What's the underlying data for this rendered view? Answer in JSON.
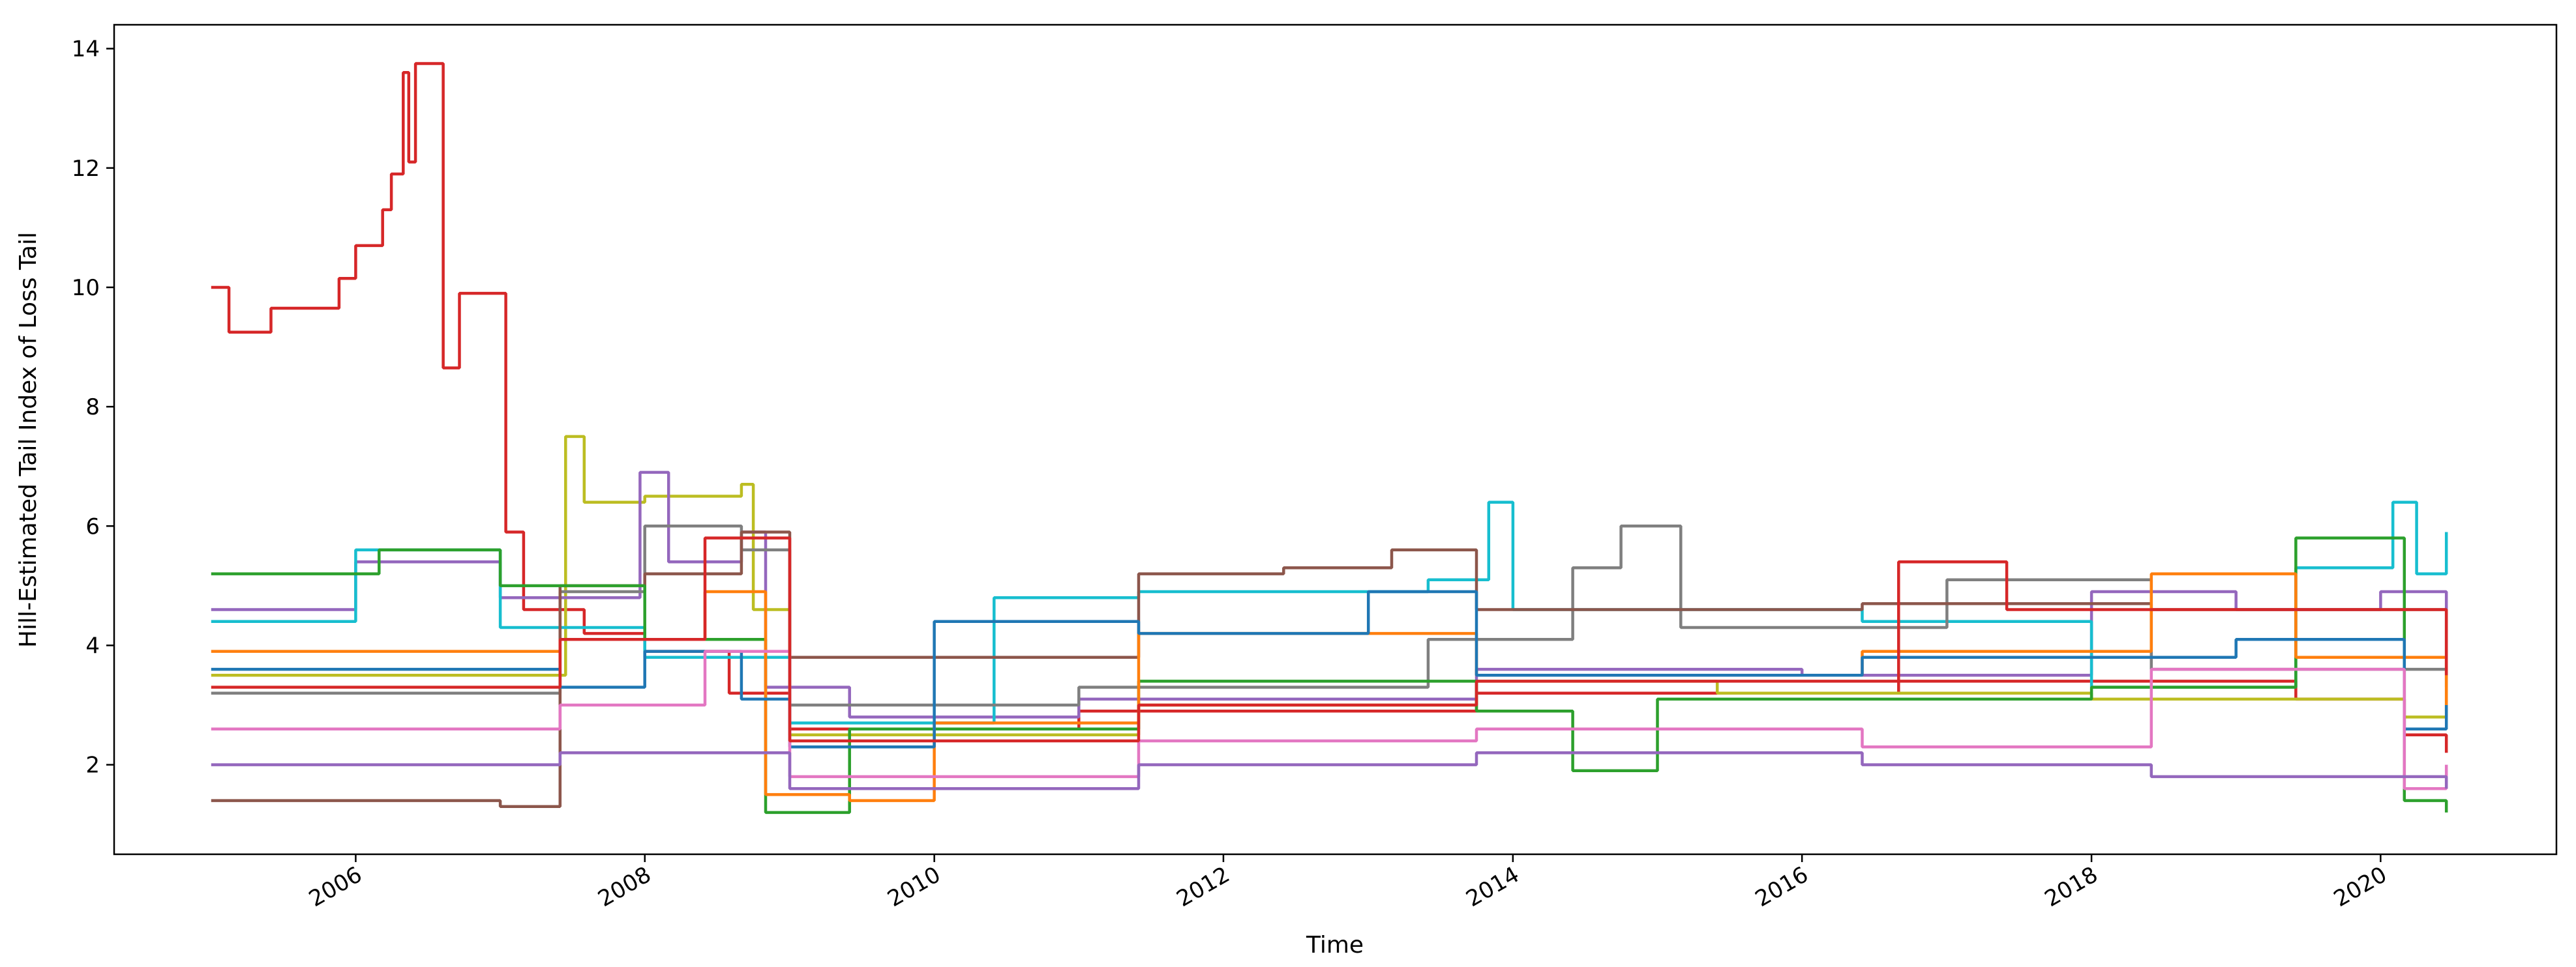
{
  "chart_data": {
    "type": "line",
    "title": "",
    "xlabel": "Time",
    "ylabel": "Hill-Estimated Tail Index of Loss Tail",
    "xlim": [
      "2004-05-01",
      "2021-03-20"
    ],
    "ylim": [
      0.5,
      14.4
    ],
    "x_ticks": [
      "2006",
      "2008",
      "2010",
      "2012",
      "2014",
      "2016",
      "2018",
      "2020"
    ],
    "y_ticks": [
      2,
      4,
      6,
      8,
      10,
      12,
      14
    ],
    "grid": false,
    "legend": "none",
    "palette": [
      "#1f77b4",
      "#ff7f0e",
      "#2ca02c",
      "#d62728",
      "#9467bd",
      "#8c564b",
      "#e377c2",
      "#7f7f7f",
      "#bcbd22",
      "#17becf"
    ],
    "series_note": "Many (roughly 100+) step-like series; individual series are unlabeled. Representative series listed below.",
    "series": [
      {
        "color": "#d62728",
        "points": [
          [
            "2005-01-01",
            10.0
          ],
          [
            "2005-02-15",
            9.25
          ],
          [
            "2005-06-01",
            9.65
          ],
          [
            "2005-11-20",
            10.15
          ],
          [
            "2006-01-01",
            10.7
          ],
          [
            "2006-03-10",
            11.3
          ],
          [
            "2006-04-01",
            11.9
          ],
          [
            "2006-05-01",
            13.6
          ],
          [
            "2006-05-15",
            12.1
          ],
          [
            "2006-06-01",
            13.75
          ],
          [
            "2006-08-10",
            8.65
          ],
          [
            "2006-09-20",
            9.9
          ],
          [
            "2007-01-15",
            5.9
          ],
          [
            "2007-03-01",
            4.6
          ],
          [
            "2007-08-01",
            4.2
          ],
          [
            "2008-01-01",
            3.9
          ],
          [
            "2008-08-01",
            3.2
          ],
          [
            "2009-01-01",
            2.6
          ],
          [
            "2011-01-01",
            2.9
          ],
          [
            "2013-10-01",
            3.2
          ],
          [
            "2016-09-01",
            3.4
          ],
          [
            "2019-06-01",
            3.1
          ],
          [
            "2020-03-01",
            2.5
          ],
          [
            "2020-06-15",
            2.2
          ]
        ]
      },
      {
        "color": "#bcbd22",
        "points": [
          [
            "2005-01-01",
            3.5
          ],
          [
            "2007-06-15",
            7.5
          ],
          [
            "2007-08-01",
            6.4
          ],
          [
            "2008-01-01",
            6.5
          ],
          [
            "2008-09-01",
            6.7
          ],
          [
            "2008-10-01",
            4.6
          ],
          [
            "2009-01-01",
            2.5
          ],
          [
            "2011-06-01",
            3.0
          ],
          [
            "2013-10-01",
            3.4
          ],
          [
            "2015-06-01",
            3.2
          ],
          [
            "2018-01-01",
            3.1
          ],
          [
            "2020-03-01",
            2.8
          ],
          [
            "2020-06-15",
            4.3
          ]
        ]
      },
      {
        "color": "#9467bd",
        "points": [
          [
            "2005-01-01",
            4.6
          ],
          [
            "2006-01-01",
            5.4
          ],
          [
            "2007-01-01",
            4.8
          ],
          [
            "2007-12-20",
            6.9
          ],
          [
            "2008-03-01",
            5.4
          ],
          [
            "2008-09-01",
            5.9
          ],
          [
            "2008-11-01",
            3.3
          ],
          [
            "2009-06-01",
            2.8
          ],
          [
            "2011-01-01",
            3.1
          ],
          [
            "2013-10-01",
            3.6
          ],
          [
            "2016-01-01",
            3.5
          ],
          [
            "2018-01-01",
            4.9
          ],
          [
            "2019-01-01",
            4.6
          ],
          [
            "2020-01-01",
            4.9
          ],
          [
            "2020-06-15",
            4.3
          ]
        ]
      },
      {
        "color": "#17becf",
        "points": [
          [
            "2005-01-01",
            4.4
          ],
          [
            "2006-01-01",
            5.6
          ],
          [
            "2007-01-01",
            4.3
          ],
          [
            "2008-01-01",
            3.8
          ],
          [
            "2009-01-01",
            2.7
          ],
          [
            "2010-06-01",
            4.8
          ],
          [
            "2011-06-01",
            4.9
          ],
          [
            "2013-06-01",
            5.1
          ],
          [
            "2013-11-01",
            6.4
          ],
          [
            "2014-01-01",
            4.6
          ],
          [
            "2016-06-01",
            4.4
          ],
          [
            "2018-01-01",
            3.3
          ],
          [
            "2019-06-01",
            5.3
          ],
          [
            "2020-02-01",
            6.4
          ],
          [
            "2020-04-01",
            5.2
          ],
          [
            "2020-06-15",
            5.9
          ]
        ]
      },
      {
        "color": "#7f7f7f",
        "points": [
          [
            "2005-01-01",
            3.2
          ],
          [
            "2007-06-01",
            4.9
          ],
          [
            "2008-01-01",
            6.0
          ],
          [
            "2008-09-01",
            5.6
          ],
          [
            "2009-01-01",
            3.0
          ],
          [
            "2011-01-01",
            3.3
          ],
          [
            "2013-06-01",
            4.1
          ],
          [
            "2014-06-01",
            5.3
          ],
          [
            "2014-10-01",
            6.0
          ],
          [
            "2015-03-01",
            4.3
          ],
          [
            "2017-01-01",
            5.1
          ],
          [
            "2018-06-01",
            3.6
          ],
          [
            "2020-06-15",
            3.3
          ]
        ]
      },
      {
        "color": "#8c564b",
        "points": [
          [
            "2005-01-01",
            1.4
          ],
          [
            "2007-01-01",
            1.3
          ],
          [
            "2007-06-01",
            5.0
          ],
          [
            "2008-01-01",
            5.2
          ],
          [
            "2008-09-01",
            5.9
          ],
          [
            "2009-01-01",
            3.8
          ],
          [
            "2011-06-01",
            5.2
          ],
          [
            "2012-06-01",
            5.3
          ],
          [
            "2013-03-01",
            5.6
          ],
          [
            "2013-10-01",
            4.6
          ],
          [
            "2016-06-01",
            4.7
          ],
          [
            "2018-06-01",
            4.6
          ],
          [
            "2020-06-15",
            3.6
          ]
        ]
      },
      {
        "color": "#2ca02c",
        "points": [
          [
            "2005-01-01",
            5.2
          ],
          [
            "2006-03-01",
            5.6
          ],
          [
            "2007-01-01",
            5.0
          ],
          [
            "2008-01-01",
            4.1
          ],
          [
            "2008-11-01",
            1.2
          ],
          [
            "2009-06-01",
            2.6
          ],
          [
            "2011-06-01",
            3.4
          ],
          [
            "2013-10-01",
            2.9
          ],
          [
            "2014-06-01",
            1.9
          ],
          [
            "2015-01-01",
            3.1
          ],
          [
            "2018-01-01",
            3.3
          ],
          [
            "2019-06-01",
            5.8
          ],
          [
            "2020-03-01",
            1.4
          ],
          [
            "2020-06-15",
            1.2
          ]
        ]
      },
      {
        "color": "#ff7f0e",
        "points": [
          [
            "2005-01-01",
            3.9
          ],
          [
            "2007-06-01",
            4.1
          ],
          [
            "2008-06-01",
            4.9
          ],
          [
            "2008-11-01",
            1.5
          ],
          [
            "2009-06-01",
            1.4
          ],
          [
            "2010-01-01",
            2.7
          ],
          [
            "2011-06-01",
            4.2
          ],
          [
            "2013-10-01",
            3.5
          ],
          [
            "2016-06-01",
            3.9
          ],
          [
            "2018-06-01",
            5.2
          ],
          [
            "2019-06-01",
            3.8
          ],
          [
            "2020-06-15",
            2.9
          ]
        ]
      },
      {
        "color": "#1f77b4",
        "points": [
          [
            "2005-01-01",
            3.6
          ],
          [
            "2007-06-01",
            3.3
          ],
          [
            "2008-01-01",
            3.9
          ],
          [
            "2008-09-01",
            3.1
          ],
          [
            "2009-01-01",
            2.3
          ],
          [
            "2010-01-01",
            4.4
          ],
          [
            "2011-06-01",
            4.2
          ],
          [
            "2013-01-01",
            4.9
          ],
          [
            "2013-10-01",
            3.5
          ],
          [
            "2016-06-01",
            3.8
          ],
          [
            "2019-01-01",
            4.1
          ],
          [
            "2020-03-01",
            2.6
          ],
          [
            "2020-06-15",
            3.0
          ]
        ]
      },
      {
        "color": "#e377c2",
        "points": [
          [
            "2005-01-01",
            2.6
          ],
          [
            "2007-06-01",
            3.0
          ],
          [
            "2008-06-01",
            3.9
          ],
          [
            "2009-01-01",
            1.8
          ],
          [
            "2011-06-01",
            2.4
          ],
          [
            "2013-10-01",
            2.6
          ],
          [
            "2016-06-01",
            2.3
          ],
          [
            "2018-06-01",
            3.6
          ],
          [
            "2020-03-01",
            1.6
          ],
          [
            "2020-06-15",
            2.0
          ]
        ]
      },
      {
        "color": "#d62728",
        "points": [
          [
            "2005-01-01",
            3.3
          ],
          [
            "2007-06-01",
            4.1
          ],
          [
            "2008-06-01",
            5.8
          ],
          [
            "2009-01-01",
            2.4
          ],
          [
            "2011-06-01",
            3.0
          ],
          [
            "2013-10-01",
            3.4
          ],
          [
            "2016-09-01",
            5.4
          ],
          [
            "2017-06-01",
            4.6
          ],
          [
            "2020-06-15",
            3.5
          ]
        ]
      },
      {
        "color": "#9467bd",
        "points": [
          [
            "2005-01-01",
            2.0
          ],
          [
            "2007-06-01",
            2.2
          ],
          [
            "2009-01-01",
            1.6
          ],
          [
            "2011-06-01",
            2.0
          ],
          [
            "2013-10-01",
            2.2
          ],
          [
            "2016-06-01",
            2.0
          ],
          [
            "2018-06-01",
            1.8
          ],
          [
            "2020-06-15",
            1.6
          ]
        ]
      }
    ]
  }
}
